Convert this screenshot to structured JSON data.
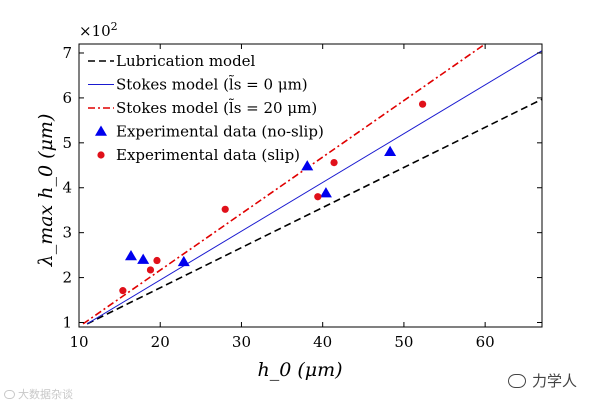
{
  "chart_data": {
    "type": "line+scatter",
    "title": "",
    "xlabel": "h_0 (μm)",
    "ylabel": "λ_max h_0 (μm)",
    "y_multiplier": "×10^2",
    "xlim": [
      10,
      67
    ],
    "ylim": [
      0.9,
      7.2
    ],
    "x_ticks": [
      10,
      20,
      30,
      40,
      50,
      60
    ],
    "y_ticks": [
      1,
      2,
      3,
      4,
      5,
      6,
      7
    ],
    "grid": false,
    "legend_position": "top-left",
    "series": [
      {
        "name": "Lubrication model",
        "kind": "line",
        "style": "dashed",
        "color": "#000000",
        "x": [
          11,
          67
        ],
        "y": [
          0.97,
          5.97
        ]
      },
      {
        "name": "Stokes model (l̃s = 0 μm)",
        "kind": "line",
        "style": "solid",
        "color": "#1a1ad0",
        "x": [
          11,
          67
        ],
        "y": [
          0.97,
          7.05
        ]
      },
      {
        "name": "Stokes model (l̃s = 20 μm)",
        "kind": "line",
        "style": "dashdot",
        "color": "#e00000",
        "x": [
          10.5,
          60
        ],
        "y": [
          0.97,
          7.2
        ]
      },
      {
        "name": "Experimental data (no-slip)",
        "kind": "scatter",
        "marker": "triangle",
        "color": "#0000ee",
        "x": [
          16.4,
          17.9,
          22.9,
          38.1,
          40.4,
          48.3
        ],
        "y": [
          2.48,
          2.4,
          2.35,
          4.48,
          3.88,
          4.8
        ]
      },
      {
        "name": "Experimental data (slip)",
        "kind": "scatter",
        "marker": "circle",
        "color": "#e0101a",
        "x": [
          15.4,
          18.8,
          19.6,
          28.0,
          39.4,
          41.4,
          52.3
        ],
        "y": [
          1.71,
          2.17,
          2.38,
          3.52,
          3.8,
          4.56,
          5.86
        ]
      }
    ]
  },
  "legend": {
    "items": [
      {
        "label": "Lubrication model",
        "style": "dashed",
        "color": "#000000"
      },
      {
        "label": "Stokes model (l̃s = 0 μm)",
        "style": "solid",
        "color": "#1a1ad0"
      },
      {
        "label": "Stokes model (l̃s = 20 μm)",
        "style": "dashdot",
        "color": "#e00000"
      },
      {
        "label": "Experimental data (no-slip)",
        "style": "triangle",
        "color": "#0000ee"
      },
      {
        "label": "Experimental data (slip)",
        "style": "circle",
        "color": "#e0101a"
      }
    ]
  },
  "watermarks": {
    "left": "大数据杂谈",
    "right": "力学人"
  }
}
